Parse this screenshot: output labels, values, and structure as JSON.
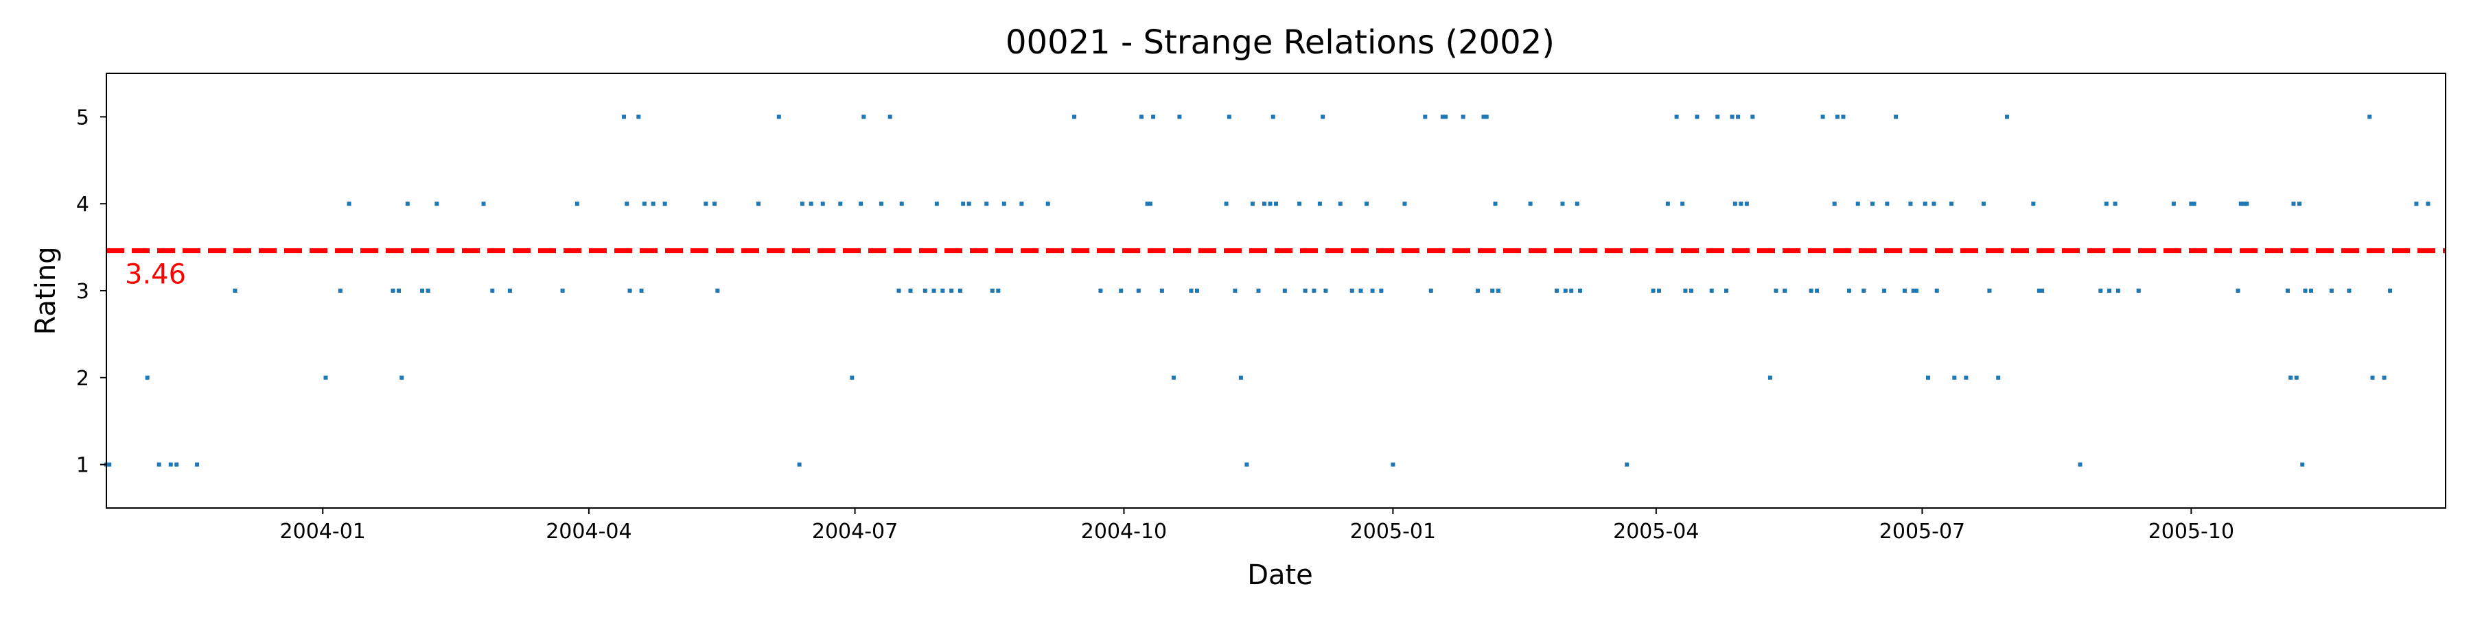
{
  "chart_data": {
    "type": "scatter",
    "title": "00021 - Strange Relations (2002)",
    "xlabel": "Date",
    "ylabel": "Rating",
    "xlim": [
      "2003-10-19",
      "2005-12-27"
    ],
    "ylim": [
      0.5,
      5.5
    ],
    "x_ticks": [
      "2004-01",
      "2004-04",
      "2004-07",
      "2004-10",
      "2005-01",
      "2005-04",
      "2005-07",
      "2005-10"
    ],
    "y_ticks": [
      "1",
      "2",
      "3",
      "4",
      "5"
    ],
    "grid": false,
    "point_color": "#1f77b4",
    "mean": {
      "value": 3.46,
      "label": "3.46",
      "color": "#ff0000",
      "style": "dashed"
    },
    "points": [
      {
        "x": "2003-10-19",
        "y": 1
      },
      {
        "x": "2003-10-20",
        "y": 1
      },
      {
        "x": "2003-11-02",
        "y": 2
      },
      {
        "x": "2003-11-06",
        "y": 1
      },
      {
        "x": "2003-11-10",
        "y": 1
      },
      {
        "x": "2003-11-12",
        "y": 1
      },
      {
        "x": "2003-11-19",
        "y": 1
      },
      {
        "x": "2003-12-02",
        "y": 3
      },
      {
        "x": "2004-01-02",
        "y": 2
      },
      {
        "x": "2004-01-07",
        "y": 3
      },
      {
        "x": "2004-01-10",
        "y": 4
      },
      {
        "x": "2004-01-25",
        "y": 3
      },
      {
        "x": "2004-01-27",
        "y": 3
      },
      {
        "x": "2004-01-28",
        "y": 2
      },
      {
        "x": "2004-01-30",
        "y": 4
      },
      {
        "x": "2004-02-04",
        "y": 3
      },
      {
        "x": "2004-02-06",
        "y": 3
      },
      {
        "x": "2004-02-09",
        "y": 4
      },
      {
        "x": "2004-02-25",
        "y": 4
      },
      {
        "x": "2004-02-28",
        "y": 3
      },
      {
        "x": "2004-03-05",
        "y": 3
      },
      {
        "x": "2004-03-23",
        "y": 3
      },
      {
        "x": "2004-03-28",
        "y": 4
      },
      {
        "x": "2004-04-13",
        "y": 5
      },
      {
        "x": "2004-04-14",
        "y": 4
      },
      {
        "x": "2004-04-15",
        "y": 3
      },
      {
        "x": "2004-04-18",
        "y": 5
      },
      {
        "x": "2004-04-19",
        "y": 3
      },
      {
        "x": "2004-04-20",
        "y": 4
      },
      {
        "x": "2004-04-23",
        "y": 4
      },
      {
        "x": "2004-04-27",
        "y": 4
      },
      {
        "x": "2004-05-11",
        "y": 4
      },
      {
        "x": "2004-05-14",
        "y": 4
      },
      {
        "x": "2004-05-15",
        "y": 3
      },
      {
        "x": "2004-05-29",
        "y": 4
      },
      {
        "x": "2004-06-05",
        "y": 5
      },
      {
        "x": "2004-06-12",
        "y": 1
      },
      {
        "x": "2004-06-13",
        "y": 4
      },
      {
        "x": "2004-06-16",
        "y": 4
      },
      {
        "x": "2004-06-20",
        "y": 4
      },
      {
        "x": "2004-06-26",
        "y": 4
      },
      {
        "x": "2004-06-30",
        "y": 2
      },
      {
        "x": "2004-07-03",
        "y": 4
      },
      {
        "x": "2004-07-04",
        "y": 5
      },
      {
        "x": "2004-07-10",
        "y": 4
      },
      {
        "x": "2004-07-13",
        "y": 5
      },
      {
        "x": "2004-07-16",
        "y": 3
      },
      {
        "x": "2004-07-17",
        "y": 4
      },
      {
        "x": "2004-07-20",
        "y": 3
      },
      {
        "x": "2004-07-25",
        "y": 3
      },
      {
        "x": "2004-07-28",
        "y": 3
      },
      {
        "x": "2004-07-29",
        "y": 4
      },
      {
        "x": "2004-07-31",
        "y": 3
      },
      {
        "x": "2004-08-03",
        "y": 3
      },
      {
        "x": "2004-08-06",
        "y": 3
      },
      {
        "x": "2004-08-07",
        "y": 4
      },
      {
        "x": "2004-08-09",
        "y": 4
      },
      {
        "x": "2004-08-15",
        "y": 4
      },
      {
        "x": "2004-08-17",
        "y": 3
      },
      {
        "x": "2004-08-19",
        "y": 3
      },
      {
        "x": "2004-08-21",
        "y": 4
      },
      {
        "x": "2004-08-27",
        "y": 4
      },
      {
        "x": "2004-09-05",
        "y": 4
      },
      {
        "x": "2004-09-14",
        "y": 5
      },
      {
        "x": "2004-09-23",
        "y": 3
      },
      {
        "x": "2004-09-30",
        "y": 3
      },
      {
        "x": "2004-10-06",
        "y": 3
      },
      {
        "x": "2004-10-07",
        "y": 5
      },
      {
        "x": "2004-10-09",
        "y": 4
      },
      {
        "x": "2004-10-10",
        "y": 4
      },
      {
        "x": "2004-10-11",
        "y": 5
      },
      {
        "x": "2004-10-14",
        "y": 3
      },
      {
        "x": "2004-10-18",
        "y": 2
      },
      {
        "x": "2004-10-20",
        "y": 5
      },
      {
        "x": "2004-10-24",
        "y": 3
      },
      {
        "x": "2004-10-26",
        "y": 3
      },
      {
        "x": "2004-11-05",
        "y": 4
      },
      {
        "x": "2004-11-06",
        "y": 5
      },
      {
        "x": "2004-11-08",
        "y": 3
      },
      {
        "x": "2004-11-10",
        "y": 2
      },
      {
        "x": "2004-11-12",
        "y": 1
      },
      {
        "x": "2004-11-14",
        "y": 4
      },
      {
        "x": "2004-11-16",
        "y": 3
      },
      {
        "x": "2004-11-18",
        "y": 4
      },
      {
        "x": "2004-11-20",
        "y": 4
      },
      {
        "x": "2004-11-21",
        "y": 5
      },
      {
        "x": "2004-11-22",
        "y": 4
      },
      {
        "x": "2004-11-25",
        "y": 3
      },
      {
        "x": "2004-11-30",
        "y": 4
      },
      {
        "x": "2004-12-02",
        "y": 3
      },
      {
        "x": "2004-12-05",
        "y": 3
      },
      {
        "x": "2004-12-07",
        "y": 4
      },
      {
        "x": "2004-12-08",
        "y": 5
      },
      {
        "x": "2004-12-09",
        "y": 3
      },
      {
        "x": "2004-12-14",
        "y": 4
      },
      {
        "x": "2004-12-18",
        "y": 3
      },
      {
        "x": "2004-12-21",
        "y": 3
      },
      {
        "x": "2004-12-23",
        "y": 4
      },
      {
        "x": "2004-12-25",
        "y": 3
      },
      {
        "x": "2004-12-28",
        "y": 3
      },
      {
        "x": "2005-01-01",
        "y": 1
      },
      {
        "x": "2005-01-05",
        "y": 4
      },
      {
        "x": "2005-01-12",
        "y": 5
      },
      {
        "x": "2005-01-14",
        "y": 3
      },
      {
        "x": "2005-01-18",
        "y": 5
      },
      {
        "x": "2005-01-19",
        "y": 5
      },
      {
        "x": "2005-01-25",
        "y": 5
      },
      {
        "x": "2005-01-30",
        "y": 3
      },
      {
        "x": "2005-02-01",
        "y": 5
      },
      {
        "x": "2005-02-02",
        "y": 5
      },
      {
        "x": "2005-02-04",
        "y": 3
      },
      {
        "x": "2005-02-05",
        "y": 4
      },
      {
        "x": "2005-02-06",
        "y": 3
      },
      {
        "x": "2005-02-17",
        "y": 4
      },
      {
        "x": "2005-02-26",
        "y": 3
      },
      {
        "x": "2005-02-28",
        "y": 4
      },
      {
        "x": "2005-03-01",
        "y": 3
      },
      {
        "x": "2005-03-03",
        "y": 3
      },
      {
        "x": "2005-03-05",
        "y": 4
      },
      {
        "x": "2005-03-06",
        "y": 3
      },
      {
        "x": "2005-03-22",
        "y": 1
      },
      {
        "x": "2005-03-31",
        "y": 3
      },
      {
        "x": "2005-04-02",
        "y": 3
      },
      {
        "x": "2005-04-05",
        "y": 4
      },
      {
        "x": "2005-04-08",
        "y": 5
      },
      {
        "x": "2005-04-10",
        "y": 4
      },
      {
        "x": "2005-04-11",
        "y": 3
      },
      {
        "x": "2005-04-13",
        "y": 3
      },
      {
        "x": "2005-04-15",
        "y": 5
      },
      {
        "x": "2005-04-20",
        "y": 3
      },
      {
        "x": "2005-04-22",
        "y": 5
      },
      {
        "x": "2005-04-25",
        "y": 3
      },
      {
        "x": "2005-04-27",
        "y": 5
      },
      {
        "x": "2005-04-28",
        "y": 4
      },
      {
        "x": "2005-04-29",
        "y": 5
      },
      {
        "x": "2005-04-30",
        "y": 4
      },
      {
        "x": "2005-05-02",
        "y": 4
      },
      {
        "x": "2005-05-04",
        "y": 5
      },
      {
        "x": "2005-05-10",
        "y": 2
      },
      {
        "x": "2005-05-12",
        "y": 3
      },
      {
        "x": "2005-05-15",
        "y": 3
      },
      {
        "x": "2005-05-24",
        "y": 3
      },
      {
        "x": "2005-05-26",
        "y": 3
      },
      {
        "x": "2005-05-28",
        "y": 5
      },
      {
        "x": "2005-06-01",
        "y": 4
      },
      {
        "x": "2005-06-02",
        "y": 5
      },
      {
        "x": "2005-06-04",
        "y": 5
      },
      {
        "x": "2005-06-06",
        "y": 3
      },
      {
        "x": "2005-06-09",
        "y": 4
      },
      {
        "x": "2005-06-11",
        "y": 3
      },
      {
        "x": "2005-06-14",
        "y": 4
      },
      {
        "x": "2005-06-18",
        "y": 3
      },
      {
        "x": "2005-06-19",
        "y": 4
      },
      {
        "x": "2005-06-22",
        "y": 5
      },
      {
        "x": "2005-06-25",
        "y": 3
      },
      {
        "x": "2005-06-27",
        "y": 4
      },
      {
        "x": "2005-06-28",
        "y": 3
      },
      {
        "x": "2005-06-29",
        "y": 3
      },
      {
        "x": "2005-07-02",
        "y": 4
      },
      {
        "x": "2005-07-03",
        "y": 2
      },
      {
        "x": "2005-07-05",
        "y": 4
      },
      {
        "x": "2005-07-06",
        "y": 3
      },
      {
        "x": "2005-07-11",
        "y": 4
      },
      {
        "x": "2005-07-12",
        "y": 2
      },
      {
        "x": "2005-07-16",
        "y": 2
      },
      {
        "x": "2005-07-22",
        "y": 4
      },
      {
        "x": "2005-07-24",
        "y": 3
      },
      {
        "x": "2005-07-27",
        "y": 2
      },
      {
        "x": "2005-07-30",
        "y": 5
      },
      {
        "x": "2005-08-08",
        "y": 4
      },
      {
        "x": "2005-08-10",
        "y": 3
      },
      {
        "x": "2005-08-11",
        "y": 3
      },
      {
        "x": "2005-08-24",
        "y": 1
      },
      {
        "x": "2005-08-31",
        "y": 3
      },
      {
        "x": "2005-09-02",
        "y": 4
      },
      {
        "x": "2005-09-03",
        "y": 3
      },
      {
        "x": "2005-09-05",
        "y": 4
      },
      {
        "x": "2005-09-06",
        "y": 3
      },
      {
        "x": "2005-09-13",
        "y": 3
      },
      {
        "x": "2005-09-25",
        "y": 4
      },
      {
        "x": "2005-10-01",
        "y": 4
      },
      {
        "x": "2005-10-02",
        "y": 4
      },
      {
        "x": "2005-10-17",
        "y": 3
      },
      {
        "x": "2005-10-18",
        "y": 4
      },
      {
        "x": "2005-10-19",
        "y": 4
      },
      {
        "x": "2005-10-20",
        "y": 4
      },
      {
        "x": "2005-11-03",
        "y": 3
      },
      {
        "x": "2005-11-04",
        "y": 2
      },
      {
        "x": "2005-11-05",
        "y": 4
      },
      {
        "x": "2005-11-06",
        "y": 2
      },
      {
        "x": "2005-11-07",
        "y": 4
      },
      {
        "x": "2005-11-08",
        "y": 1
      },
      {
        "x": "2005-11-09",
        "y": 3
      },
      {
        "x": "2005-11-11",
        "y": 3
      },
      {
        "x": "2005-11-18",
        "y": 3
      },
      {
        "x": "2005-11-24",
        "y": 3
      },
      {
        "x": "2005-12-01",
        "y": 5
      },
      {
        "x": "2005-12-02",
        "y": 2
      },
      {
        "x": "2005-12-06",
        "y": 2
      },
      {
        "x": "2005-12-08",
        "y": 3
      },
      {
        "x": "2005-12-17",
        "y": 4
      },
      {
        "x": "2005-12-21",
        "y": 4
      }
    ]
  }
}
